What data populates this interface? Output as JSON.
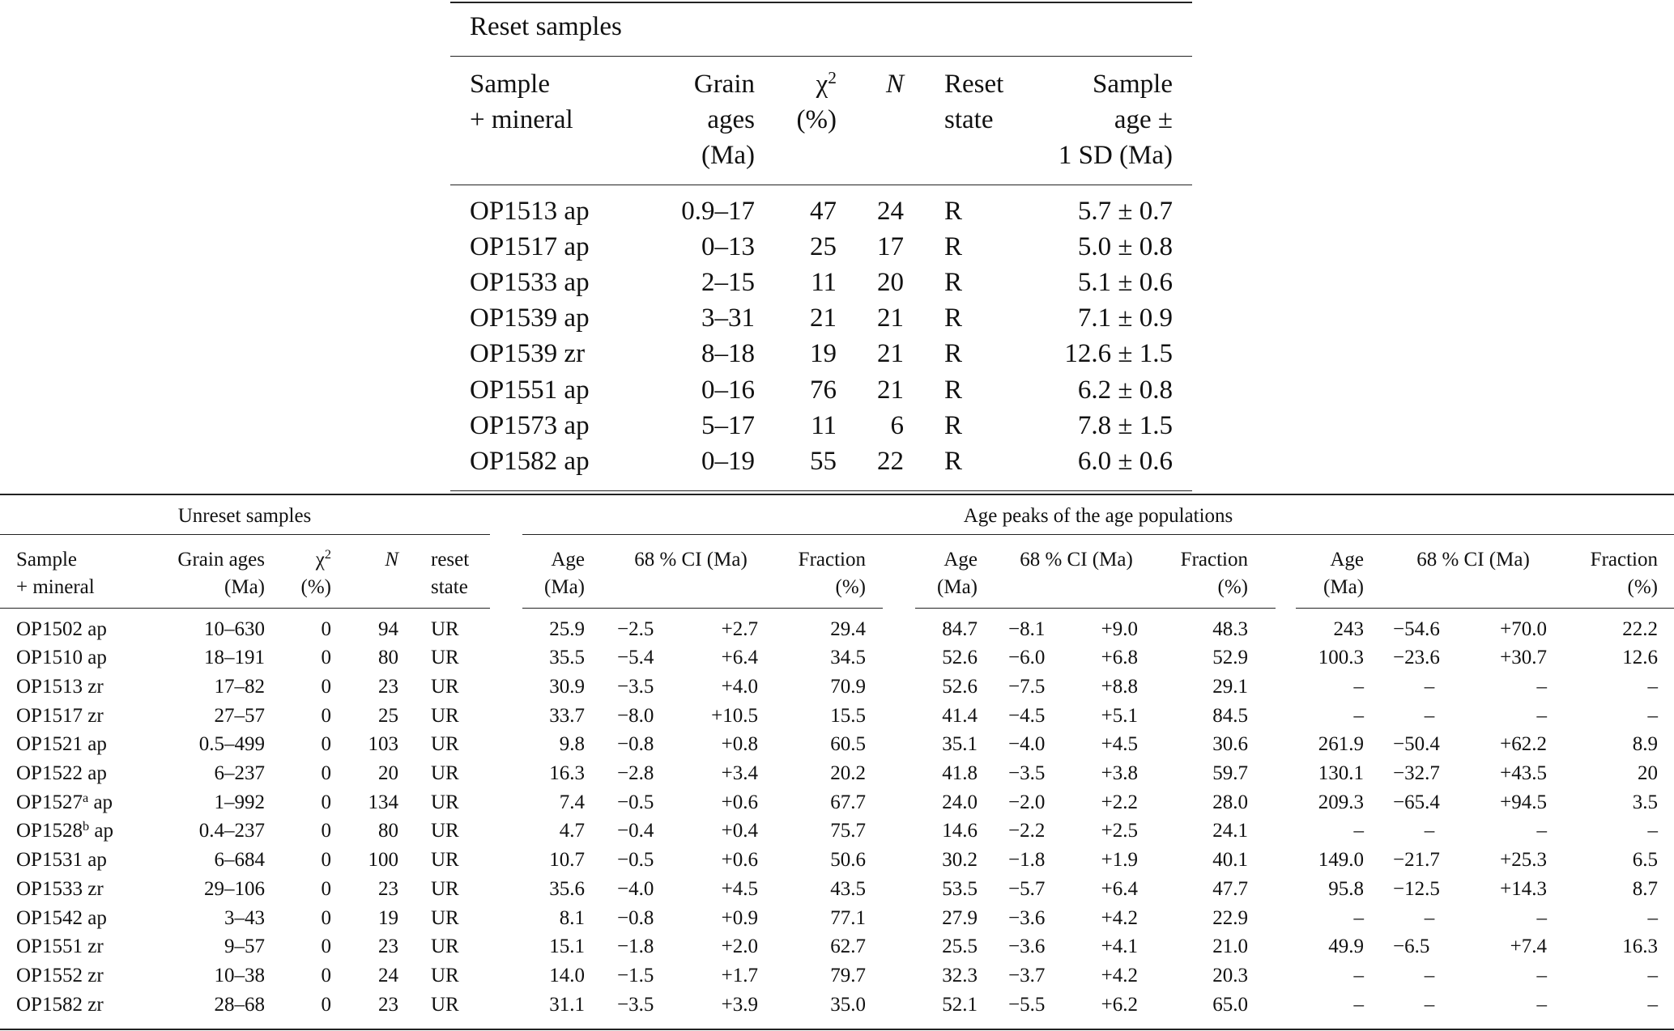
{
  "reset": {
    "title": "Reset samples",
    "headers": {
      "sample": [
        "Sample",
        "+ mineral"
      ],
      "grain_ages": [
        "Grain",
        "ages",
        "(Ma)"
      ],
      "chi": [
        "χ",
        "2",
        "(%)"
      ],
      "n": "N",
      "reset_state": [
        "Reset",
        "state"
      ],
      "sample_age": [
        "Sample",
        "age ±",
        "1 SD (Ma)"
      ]
    },
    "rows": [
      {
        "sample": "OP1513 ap",
        "grain_ages": "0.9–17",
        "chi": "47",
        "n": "24",
        "state": "R",
        "age": "5.7 ± 0.7"
      },
      {
        "sample": "OP1517 ap",
        "grain_ages": "0–13",
        "chi": "25",
        "n": "17",
        "state": "R",
        "age": "5.0 ± 0.8"
      },
      {
        "sample": "OP1533 ap",
        "grain_ages": "2–15",
        "chi": "11",
        "n": "20",
        "state": "R",
        "age": "5.1 ± 0.6"
      },
      {
        "sample": "OP1539 ap",
        "grain_ages": "3–31",
        "chi": "21",
        "n": "21",
        "state": "R",
        "age": "7.1 ± 0.9"
      },
      {
        "sample": "OP1539 zr",
        "grain_ages": "8–18",
        "chi": "19",
        "n": "21",
        "state": "R",
        "age": "12.6 ± 1.5"
      },
      {
        "sample": "OP1551 ap",
        "grain_ages": "0–16",
        "chi": "76",
        "n": "21",
        "state": "R",
        "age": "6.2 ± 0.8"
      },
      {
        "sample": "OP1573 ap",
        "grain_ages": "5–17",
        "chi": "11",
        "n": "6",
        "state": "R",
        "age": "7.8 ± 1.5"
      },
      {
        "sample": "OP1582 ap",
        "grain_ages": "0–19",
        "chi": "55",
        "n": "22",
        "state": "R",
        "age": "6.0 ± 0.6"
      }
    ]
  },
  "unreset": {
    "title": "Unreset samples",
    "peaks_title": "Age peaks of the age populations",
    "headers": {
      "sample": [
        "Sample",
        "+ mineral"
      ],
      "grain_ages": [
        "Grain ages",
        "(Ma)"
      ],
      "chi": [
        "χ",
        "2",
        "(%)"
      ],
      "n": "N",
      "reset_state": [
        "reset",
        "state"
      ],
      "peak_age": [
        "Age",
        "(Ma)"
      ],
      "peak_ci": "68 % CI (Ma)",
      "peak_fraction": [
        "Fraction",
        "(%)"
      ]
    },
    "rows": [
      {
        "sample": "OP1502",
        "note": "",
        "mineral": "ap",
        "grain_ages": "10–630",
        "chi": "0",
        "n": "94",
        "state": "UR",
        "peaks": [
          [
            "25.9",
            "−2.5",
            "+2.7",
            "29.4"
          ],
          [
            "84.7",
            "−8.1",
            "+9.0",
            "48.3"
          ],
          [
            "243",
            "−54.6",
            "+70.0",
            "22.2"
          ]
        ]
      },
      {
        "sample": "OP1510",
        "note": "",
        "mineral": "ap",
        "grain_ages": "18–191",
        "chi": "0",
        "n": "80",
        "state": "UR",
        "peaks": [
          [
            "35.5",
            "−5.4",
            "+6.4",
            "34.5"
          ],
          [
            "52.6",
            "−6.0",
            "+6.8",
            "52.9"
          ],
          [
            "100.3",
            "−23.6",
            "+30.7",
            "12.6"
          ]
        ]
      },
      {
        "sample": "OP1513",
        "note": "",
        "mineral": "zr",
        "grain_ages": "17–82",
        "chi": "0",
        "n": "23",
        "state": "UR",
        "peaks": [
          [
            "30.9",
            "−3.5",
            "+4.0",
            "70.9"
          ],
          [
            "52.6",
            "−7.5",
            "+8.8",
            "29.1"
          ],
          [
            "–",
            "–",
            "–",
            "–"
          ]
        ]
      },
      {
        "sample": "OP1517",
        "note": "",
        "mineral": "zr",
        "grain_ages": "27–57",
        "chi": "0",
        "n": "25",
        "state": "UR",
        "peaks": [
          [
            "33.7",
            "−8.0",
            "+10.5",
            "15.5"
          ],
          [
            "41.4",
            "−4.5",
            "+5.1",
            "84.5"
          ],
          [
            "–",
            "–",
            "–",
            "–"
          ]
        ]
      },
      {
        "sample": "OP1521",
        "note": "",
        "mineral": "ap",
        "grain_ages": "0.5–499",
        "chi": "0",
        "n": "103",
        "state": "UR",
        "peaks": [
          [
            "9.8",
            "−0.8",
            "+0.8",
            "60.5"
          ],
          [
            "35.1",
            "−4.0",
            "+4.5",
            "30.6"
          ],
          [
            "261.9",
            "−50.4",
            "+62.2",
            "8.9"
          ]
        ]
      },
      {
        "sample": "OP1522",
        "note": "",
        "mineral": "ap",
        "grain_ages": "6–237",
        "chi": "0",
        "n": "20",
        "state": "UR",
        "peaks": [
          [
            "16.3",
            "−2.8",
            "+3.4",
            "20.2"
          ],
          [
            "41.8",
            "−3.5",
            "+3.8",
            "59.7"
          ],
          [
            "130.1",
            "−32.7",
            "+43.5",
            "20"
          ]
        ]
      },
      {
        "sample": "OP1527",
        "note": "a",
        "mineral": "ap",
        "grain_ages": "1–992",
        "chi": "0",
        "n": "134",
        "state": "UR",
        "peaks": [
          [
            "7.4",
            "−0.5",
            "+0.6",
            "67.7"
          ],
          [
            "24.0",
            "−2.0",
            "+2.2",
            "28.0"
          ],
          [
            "209.3",
            "−65.4",
            "+94.5",
            "3.5"
          ]
        ]
      },
      {
        "sample": "OP1528",
        "note": "b",
        "mineral": "ap",
        "grain_ages": "0.4–237",
        "chi": "0",
        "n": "80",
        "state": "UR",
        "peaks": [
          [
            "4.7",
            "−0.4",
            "+0.4",
            "75.7"
          ],
          [
            "14.6",
            "−2.2",
            "+2.5",
            "24.1"
          ],
          [
            "–",
            "–",
            "–",
            "–"
          ]
        ]
      },
      {
        "sample": "OP1531",
        "note": "",
        "mineral": "ap",
        "grain_ages": "6–684",
        "chi": "0",
        "n": "100",
        "state": "UR",
        "peaks": [
          [
            "10.7",
            "−0.5",
            "+0.6",
            "50.6"
          ],
          [
            "30.2",
            "−1.8",
            "+1.9",
            "40.1"
          ],
          [
            "149.0",
            "−21.7",
            "+25.3",
            "6.5"
          ]
        ]
      },
      {
        "sample": "OP1533",
        "note": "",
        "mineral": "zr",
        "grain_ages": "29–106",
        "chi": "0",
        "n": "23",
        "state": "UR",
        "peaks": [
          [
            "35.6",
            "−4.0",
            "+4.5",
            "43.5"
          ],
          [
            "53.5",
            "−5.7",
            "+6.4",
            "47.7"
          ],
          [
            "95.8",
            "−12.5",
            "+14.3",
            "8.7"
          ]
        ]
      },
      {
        "sample": "OP1542",
        "note": "",
        "mineral": "ap",
        "grain_ages": "3–43",
        "chi": "0",
        "n": "19",
        "state": "UR",
        "peaks": [
          [
            "8.1",
            "−0.8",
            "+0.9",
            "77.1"
          ],
          [
            "27.9",
            "−3.6",
            "+4.2",
            "22.9"
          ],
          [
            "–",
            "–",
            "–",
            "–"
          ]
        ]
      },
      {
        "sample": "OP1551",
        "note": "",
        "mineral": "zr",
        "grain_ages": "9–57",
        "chi": "0",
        "n": "23",
        "state": "UR",
        "peaks": [
          [
            "15.1",
            "−1.8",
            "+2.0",
            "62.7"
          ],
          [
            "25.5",
            "−3.6",
            "+4.1",
            "21.0"
          ],
          [
            "49.9",
            "−6.5",
            "+7.4",
            "16.3"
          ]
        ]
      },
      {
        "sample": "OP1552",
        "note": "",
        "mineral": "zr",
        "grain_ages": "10–38",
        "chi": "0",
        "n": "24",
        "state": "UR",
        "peaks": [
          [
            "14.0",
            "−1.5",
            "+1.7",
            "79.7"
          ],
          [
            "32.3",
            "−3.7",
            "+4.2",
            "20.3"
          ],
          [
            "–",
            "–",
            "–",
            "–"
          ]
        ]
      },
      {
        "sample": "OP1582",
        "note": "",
        "mineral": "zr",
        "grain_ages": "28–68",
        "chi": "0",
        "n": "23",
        "state": "UR",
        "peaks": [
          [
            "31.1",
            "−3.5",
            "+3.9",
            "35.0"
          ],
          [
            "52.1",
            "−5.5",
            "+6.2",
            "65.0"
          ],
          [
            "–",
            "–",
            "–",
            "–"
          ]
        ]
      }
    ]
  }
}
